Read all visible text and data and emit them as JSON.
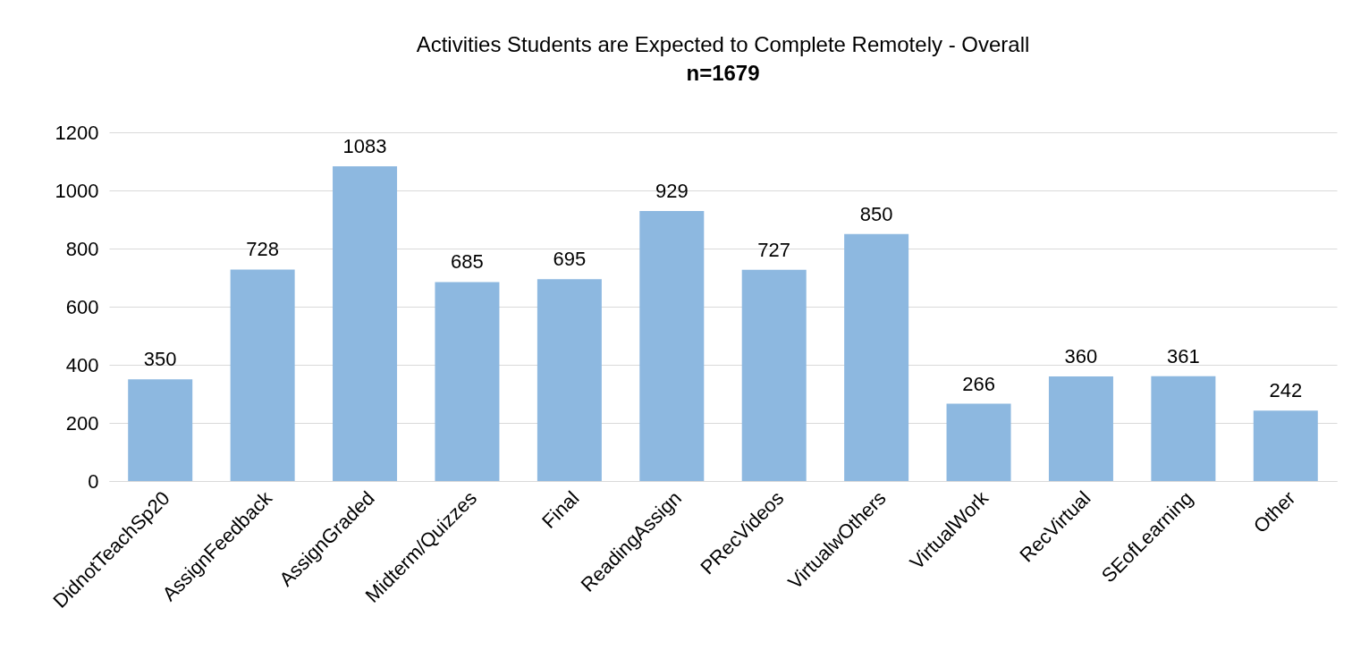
{
  "chart_data": {
    "type": "bar",
    "title": "Activities Students are Expected to Complete Remotely - Overall",
    "subtitle": "n=1679",
    "categories": [
      "DidnotTeachSp20",
      "AssignFeedback",
      "AssignGraded",
      "Midterm/Quizzes",
      "Final",
      "ReadingAssign",
      "PRecVideos",
      "VirtualwOthers",
      "VirtualWork",
      "RecVirtual",
      "SEofLearning",
      "Other"
    ],
    "values": [
      350,
      728,
      1083,
      685,
      695,
      929,
      727,
      850,
      266,
      360,
      361,
      242
    ],
    "color": "#8db8e0",
    "ylim": [
      0,
      1200
    ],
    "yticks": [
      0,
      200,
      400,
      600,
      800,
      1000,
      1200
    ],
    "grid": "y",
    "data_labels": true
  }
}
